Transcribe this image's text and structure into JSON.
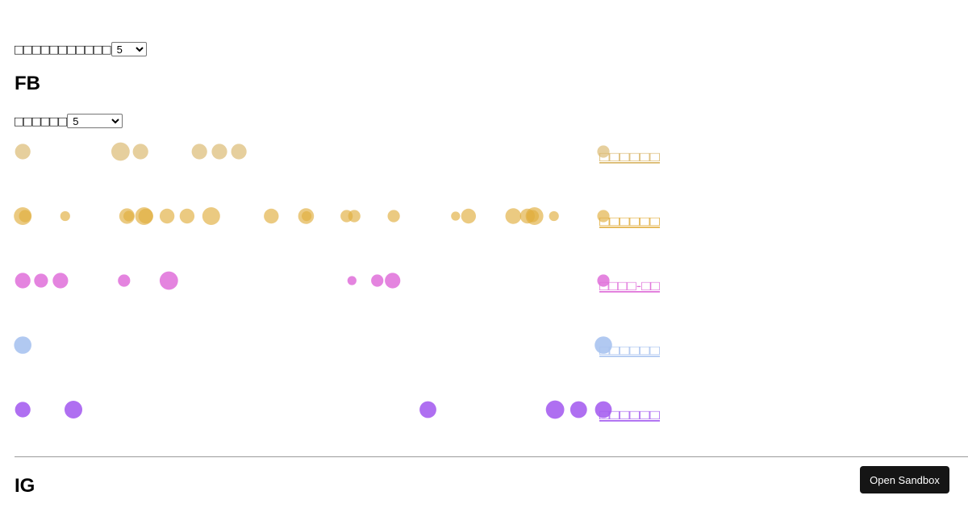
{
  "top_control": {
    "label": "□□□□□□□□□□□",
    "value": "5",
    "options": [
      "5"
    ]
  },
  "sections": {
    "fb_title": "FB",
    "ig_title": "IG"
  },
  "fb_control": {
    "label": "□□□□□□",
    "value": "5",
    "options": [
      "5"
    ]
  },
  "sandbox_button": {
    "label": "Open Sandbox"
  },
  "chart_data": {
    "type": "scatter",
    "title": "",
    "xlabel": "",
    "ylabel": "",
    "x_domain": [
      0,
      100
    ],
    "grid": false,
    "legend": "none",
    "rows": [
      {
        "label": "□□□□□□",
        "color": "#d9b668",
        "opacity": 0.65,
        "points": [
          {
            "x": 1.4,
            "size": 9.6
          },
          {
            "x": 18.0,
            "size": 11.4
          },
          {
            "x": 21.4,
            "size": 9.6
          },
          {
            "x": 31.4,
            "size": 9.6
          },
          {
            "x": 34.8,
            "size": 9.6
          },
          {
            "x": 38.1,
            "size": 9.6
          },
          {
            "x": 100.0,
            "size": 7.6
          }
        ]
      },
      {
        "label": "□□□□□□",
        "color": "#e0ad3e",
        "opacity": 0.65,
        "points": [
          {
            "x": 1.4,
            "size": 11.0
          },
          {
            "x": 1.8,
            "size": 7.6
          },
          {
            "x": 8.6,
            "size": 6.1
          },
          {
            "x": 19.1,
            "size": 9.6
          },
          {
            "x": 19.4,
            "size": 6.6
          },
          {
            "x": 22.0,
            "size": 11.0
          },
          {
            "x": 22.3,
            "size": 9.2
          },
          {
            "x": 25.9,
            "size": 9.2
          },
          {
            "x": 29.3,
            "size": 9.2
          },
          {
            "x": 33.4,
            "size": 11.0
          },
          {
            "x": 43.6,
            "size": 9.2
          },
          {
            "x": 49.5,
            "size": 9.8
          },
          {
            "x": 49.6,
            "size": 6.1
          },
          {
            "x": 56.4,
            "size": 7.6
          },
          {
            "x": 57.7,
            "size": 7.6
          },
          {
            "x": 64.4,
            "size": 7.6
          },
          {
            "x": 74.9,
            "size": 5.6
          },
          {
            "x": 77.1,
            "size": 9.2
          },
          {
            "x": 84.7,
            "size": 9.8
          },
          {
            "x": 87.1,
            "size": 9.2
          },
          {
            "x": 88.3,
            "size": 11.0
          },
          {
            "x": 88.0,
            "size": 7.6
          },
          {
            "x": 91.6,
            "size": 6.1
          },
          {
            "x": 100.0,
            "size": 7.6
          }
        ]
      },
      {
        "label": "□□□□-□□",
        "color": "#df6ed9",
        "opacity": 0.85,
        "points": [
          {
            "x": 1.4,
            "size": 9.6
          },
          {
            "x": 4.5,
            "size": 8.6
          },
          {
            "x": 7.8,
            "size": 9.6
          },
          {
            "x": 18.6,
            "size": 7.6
          },
          {
            "x": 26.2,
            "size": 11.4
          },
          {
            "x": 57.3,
            "size": 5.6
          },
          {
            "x": 61.6,
            "size": 7.6
          },
          {
            "x": 64.2,
            "size": 9.6
          },
          {
            "x": 100.0,
            "size": 7.6
          }
        ]
      },
      {
        "label": "□□□□□□",
        "color": "#a9c3ef",
        "opacity": 0.9,
        "points": [
          {
            "x": 1.4,
            "size": 10.8
          },
          {
            "x": 100.0,
            "size": 10.8
          }
        ]
      },
      {
        "label": "□□□□□□",
        "color": "#a65ff0",
        "opacity": 0.9,
        "points": [
          {
            "x": 1.4,
            "size": 9.6
          },
          {
            "x": 10.0,
            "size": 11.0
          },
          {
            "x": 70.2,
            "size": 10.4
          },
          {
            "x": 91.8,
            "size": 11.4
          },
          {
            "x": 95.8,
            "size": 10.4
          },
          {
            "x": 100.0,
            "size": 10.4
          }
        ]
      }
    ]
  }
}
